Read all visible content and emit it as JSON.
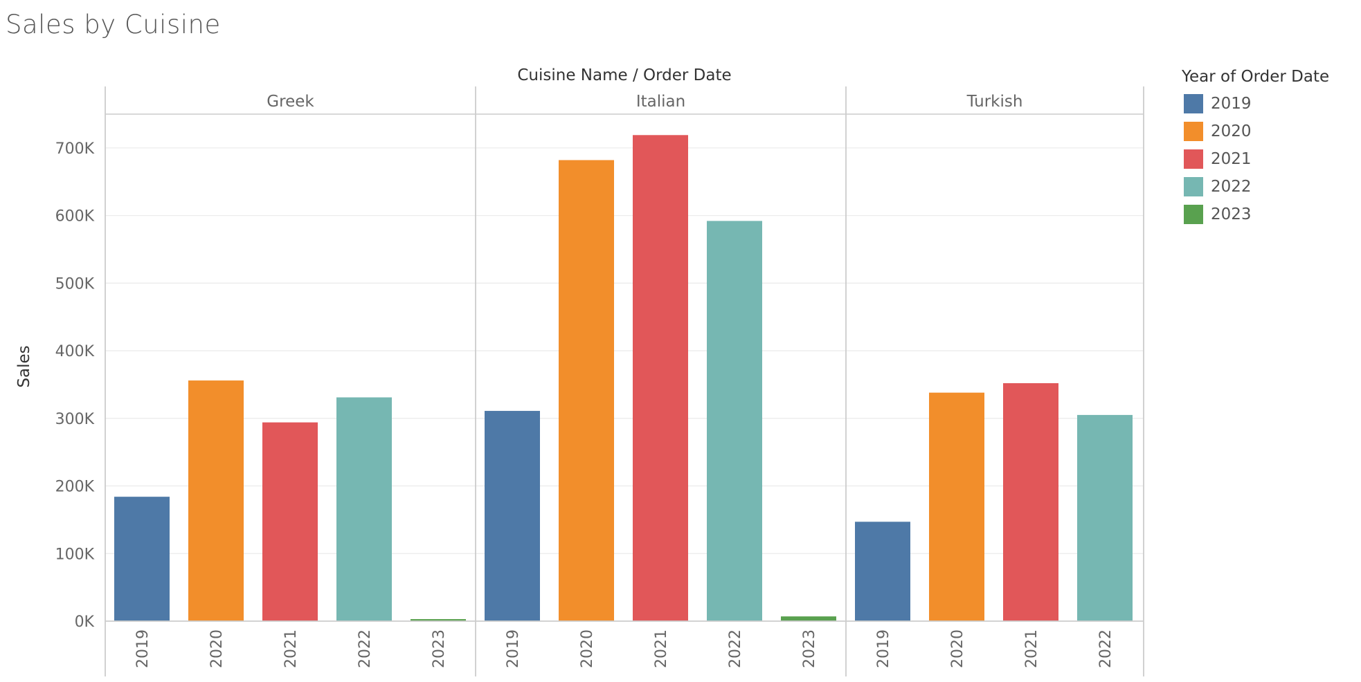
{
  "title": "Sales by Cuisine",
  "chart_data": {
    "type": "bar",
    "title": "Sales by Cuisine",
    "column_header": "Cuisine Name  /  Order Date",
    "ylabel": "Sales",
    "ylim": [
      0,
      750000
    ],
    "y_ticks": [
      {
        "value": 0,
        "label": "0K"
      },
      {
        "value": 100000,
        "label": "100K"
      },
      {
        "value": 200000,
        "label": "200K"
      },
      {
        "value": 300000,
        "label": "300K"
      },
      {
        "value": 400000,
        "label": "400K"
      },
      {
        "value": 500000,
        "label": "500K"
      },
      {
        "value": 600000,
        "label": "600K"
      },
      {
        "value": 700000,
        "label": "700K"
      }
    ],
    "grid": true,
    "legend": {
      "title": "Year of Order Date",
      "position": "right",
      "items": [
        {
          "label": "2019",
          "color": "#4e79a7"
        },
        {
          "label": "2020",
          "color": "#f28e2b"
        },
        {
          "label": "2021",
          "color": "#e15759"
        },
        {
          "label": "2022",
          "color": "#76b7b2"
        },
        {
          "label": "2023",
          "color": "#59a14f"
        }
      ]
    },
    "panels": [
      {
        "name": "Greek",
        "categories": [
          "2019",
          "2020",
          "2021",
          "2022",
          "2023"
        ],
        "values": [
          184000,
          356000,
          294000,
          331000,
          3000
        ]
      },
      {
        "name": "Italian",
        "categories": [
          "2019",
          "2020",
          "2021",
          "2022",
          "2023"
        ],
        "values": [
          311000,
          682000,
          719000,
          592000,
          7000
        ]
      },
      {
        "name": "Turkish",
        "categories": [
          "2019",
          "2020",
          "2021",
          "2022"
        ],
        "values": [
          147000,
          338000,
          352000,
          305000
        ]
      }
    ]
  }
}
